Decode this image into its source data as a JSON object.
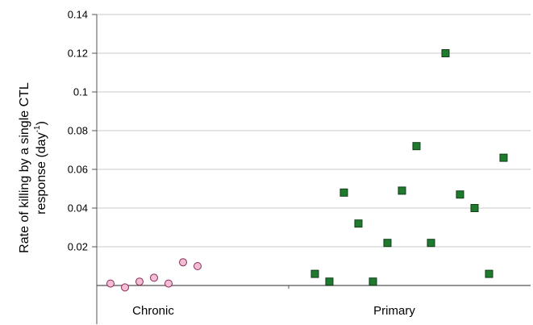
{
  "chart_data": {
    "type": "scatter",
    "title": "",
    "ylabel_line1": "Rate of killing by a single CTL",
    "ylabel_line2_prefix": "response (day",
    "ylabel_line2_sup": "-1",
    "ylabel_line2_suffix": ")",
    "ylim": [
      -0.01,
      0.14
    ],
    "yticks": [
      "0.14",
      "0.12",
      "0.1",
      "0.08",
      "0.06",
      "0.04",
      "0.02"
    ],
    "ytick_values": [
      0.14,
      0.12,
      0.1,
      0.08,
      0.06,
      0.04,
      0.02
    ],
    "categories": [
      "Chronic",
      "Primary"
    ],
    "grid": "horizontal",
    "legend": "none",
    "series": [
      {
        "category": "Chronic",
        "marker": "circle",
        "color": "#f4bdd6",
        "stroke": "#8a2a55",
        "x": [
          0,
          1,
          2,
          3,
          4,
          5,
          6
        ],
        "y": [
          0.001,
          -0.001,
          0.002,
          0.004,
          0.001,
          0.012,
          0.01
        ]
      },
      {
        "category": "Primary",
        "marker": "square",
        "color": "#1e7a2c",
        "stroke": "#123d1a",
        "x": [
          0,
          1,
          2,
          3,
          4,
          5,
          6,
          7,
          8,
          9,
          10,
          11,
          12,
          13
        ],
        "y": [
          0.006,
          0.002,
          0.048,
          0.032,
          0.002,
          0.022,
          0.049,
          0.072,
          0.022,
          0.12,
          0.047,
          0.04,
          0.006,
          0.066
        ]
      }
    ]
  }
}
